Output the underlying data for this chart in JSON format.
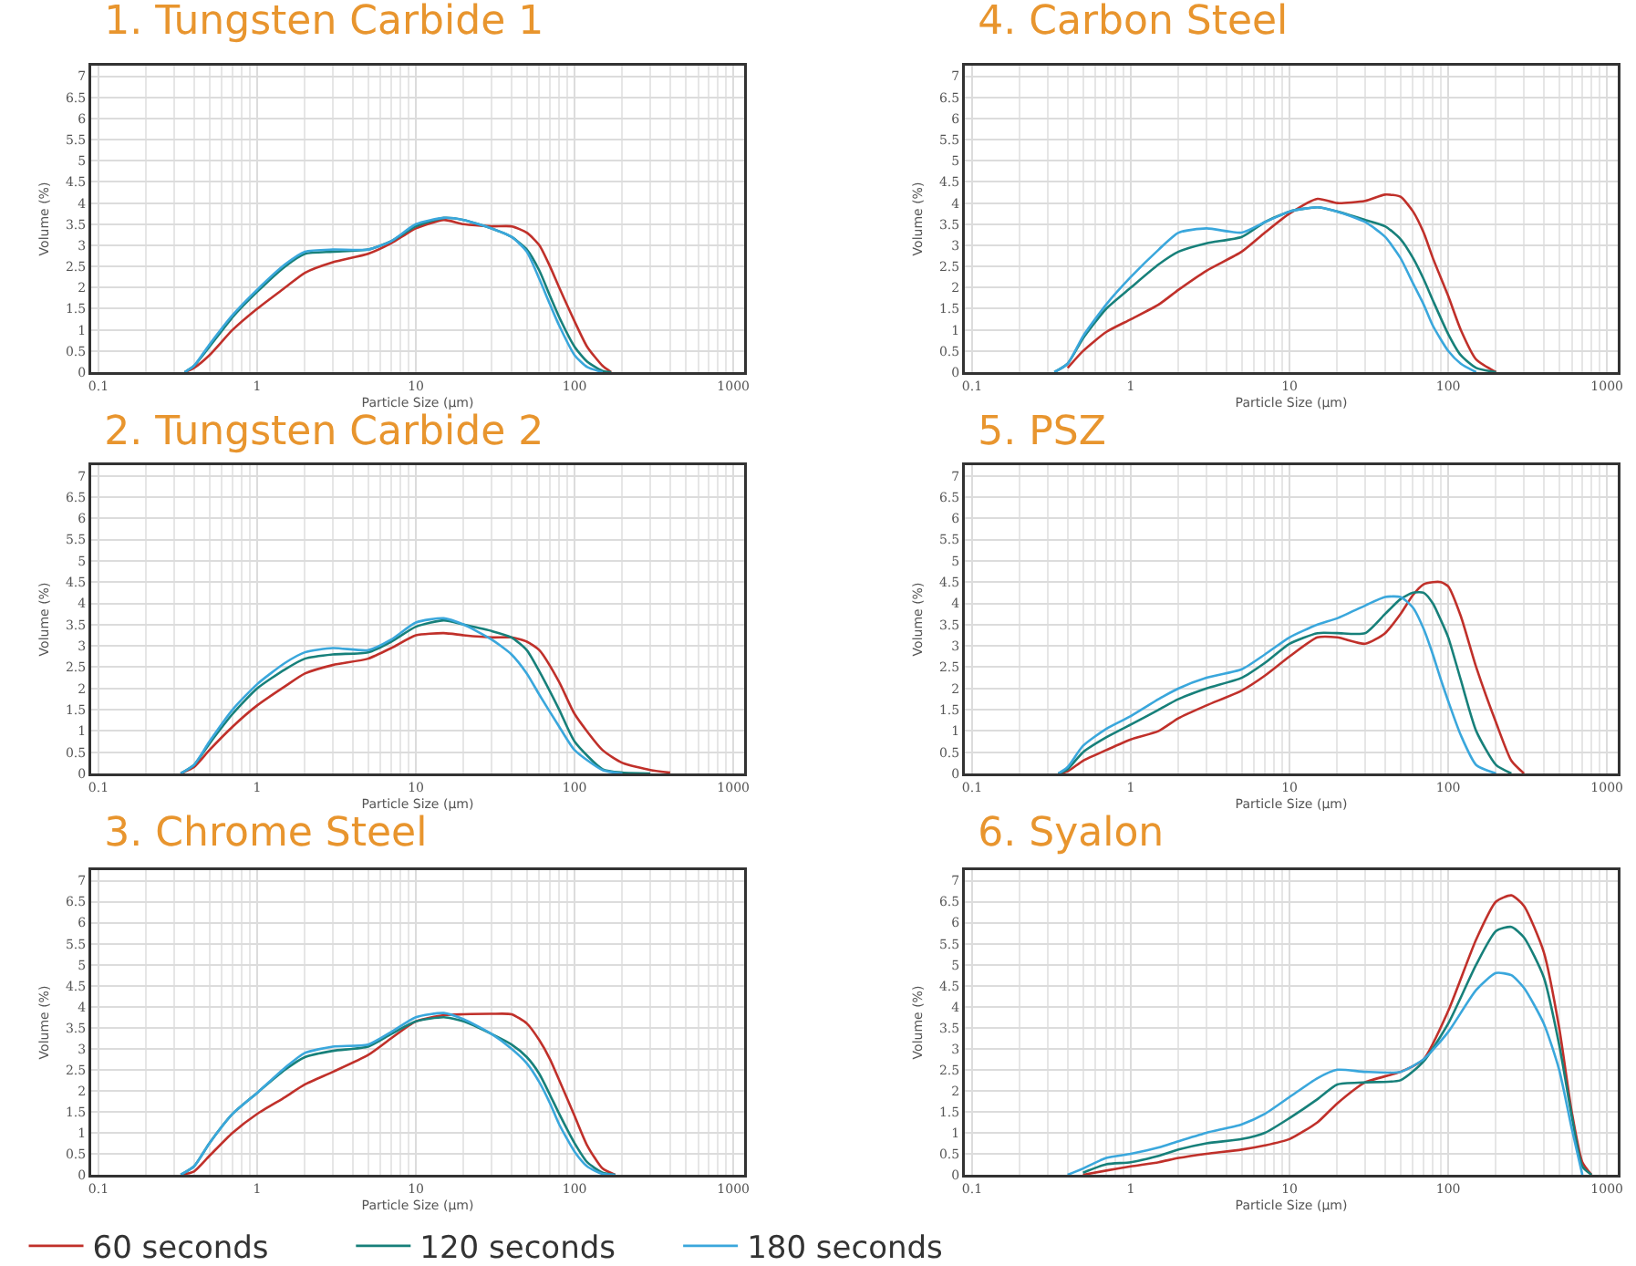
{
  "chart_data": [
    {
      "type": "line",
      "title": "1. Tungsten Carbide 1",
      "xlabel": "Particle Size (μm)",
      "ylabel": "Volume (%)",
      "log": "x",
      "grid": true,
      "legend": false,
      "xlim": [
        0.09,
        1170
      ],
      "ylim": [
        0,
        7.25
      ],
      "xticks": [
        0.1,
        1,
        10,
        100,
        1000
      ],
      "yticks": [
        0,
        0.5,
        1,
        1.5,
        2,
        2.5,
        3,
        3.5,
        4,
        4.5,
        5,
        5.5,
        6,
        6.5,
        7
      ],
      "x": [
        0.35,
        0.4,
        0.5,
        0.7,
        1,
        1.5,
        2,
        3,
        5,
        7,
        10,
        15,
        20,
        30,
        40,
        50,
        60,
        70,
        80,
        100,
        120,
        150,
        170
      ],
      "series": [
        {
          "color": "#c0302a",
          "values": [
            0,
            0.1,
            0.4,
            1.0,
            1.5,
            2.0,
            2.35,
            2.6,
            2.8,
            3.05,
            3.4,
            3.6,
            3.5,
            3.45,
            3.45,
            3.3,
            3.0,
            2.5,
            2.0,
            1.2,
            0.6,
            0.15,
            0
          ]
        },
        {
          "color": "#17807a",
          "values": [
            0,
            0.15,
            0.6,
            1.3,
            1.9,
            2.5,
            2.8,
            2.85,
            2.9,
            3.1,
            3.45,
            3.65,
            3.6,
            3.4,
            3.2,
            2.9,
            2.4,
            1.8,
            1.3,
            0.6,
            0.25,
            0.03,
            0
          ]
        },
        {
          "color": "#3aa7dc",
          "values": [
            0,
            0.15,
            0.65,
            1.35,
            1.95,
            2.55,
            2.85,
            2.9,
            2.9,
            3.1,
            3.5,
            3.65,
            3.6,
            3.4,
            3.2,
            2.85,
            2.2,
            1.6,
            1.1,
            0.4,
            0.12,
            0,
            null
          ]
        }
      ]
    },
    {
      "type": "line",
      "title": "4. Carbon Steel",
      "xlabel": "Particle Size (μm)",
      "ylabel": "Volume (%)",
      "log": "x",
      "grid": true,
      "legend": false,
      "xlim": [
        0.09,
        1170
      ],
      "ylim": [
        0,
        7.25
      ],
      "xticks": [
        0.1,
        1,
        10,
        100,
        1000
      ],
      "yticks": [
        0,
        0.5,
        1,
        1.5,
        2,
        2.5,
        3,
        3.5,
        4,
        4.5,
        5,
        5.5,
        6,
        6.5,
        7
      ],
      "x": [
        0.33,
        0.4,
        0.5,
        0.7,
        1,
        1.5,
        2,
        3,
        5,
        7,
        10,
        15,
        20,
        30,
        40,
        50,
        60,
        70,
        80,
        100,
        120,
        150,
        200
      ],
      "series": [
        {
          "color": "#c0302a",
          "values": [
            null,
            0.1,
            0.5,
            0.95,
            1.25,
            1.6,
            1.95,
            2.4,
            2.85,
            3.3,
            3.75,
            4.1,
            4.0,
            4.05,
            4.2,
            4.15,
            3.8,
            3.3,
            2.7,
            1.8,
            1.0,
            0.3,
            0
          ]
        },
        {
          "color": "#17807a",
          "values": [
            0,
            0.2,
            0.8,
            1.5,
            2.0,
            2.55,
            2.85,
            3.05,
            3.2,
            3.55,
            3.8,
            3.9,
            3.8,
            3.6,
            3.45,
            3.15,
            2.7,
            2.2,
            1.7,
            0.9,
            0.4,
            0.1,
            0
          ]
        },
        {
          "color": "#3aa7dc",
          "values": [
            0,
            0.2,
            0.85,
            1.6,
            2.25,
            2.9,
            3.3,
            3.4,
            3.3,
            3.55,
            3.8,
            3.9,
            3.8,
            3.55,
            3.2,
            2.7,
            2.1,
            1.6,
            1.1,
            0.5,
            0.2,
            0,
            null
          ]
        }
      ]
    },
    {
      "type": "line",
      "title": "2. Tungsten Carbide 2",
      "xlabel": "Particle Size (μm)",
      "ylabel": "Volume (%)",
      "log": "x",
      "grid": true,
      "legend": false,
      "xlim": [
        0.09,
        1170
      ],
      "ylim": [
        0,
        7.25
      ],
      "xticks": [
        0.1,
        1,
        10,
        100,
        1000
      ],
      "yticks": [
        0,
        0.5,
        1,
        1.5,
        2,
        2.5,
        3,
        3.5,
        4,
        4.5,
        5,
        5.5,
        6,
        6.5,
        7
      ],
      "x": [
        0.33,
        0.4,
        0.5,
        0.7,
        1,
        1.5,
        2,
        3,
        5,
        7,
        10,
        15,
        20,
        30,
        40,
        50,
        60,
        80,
        100,
        150,
        200,
        300,
        400
      ],
      "series": [
        {
          "color": "#c0302a",
          "values": [
            0,
            0.15,
            0.55,
            1.1,
            1.6,
            2.05,
            2.35,
            2.55,
            2.7,
            2.95,
            3.25,
            3.3,
            3.25,
            3.2,
            3.2,
            3.1,
            2.9,
            2.15,
            1.4,
            0.55,
            0.25,
            0.08,
            0.02
          ]
        },
        {
          "color": "#17807a",
          "values": [
            0,
            0.2,
            0.7,
            1.4,
            2.0,
            2.45,
            2.7,
            2.8,
            2.85,
            3.1,
            3.45,
            3.6,
            3.5,
            3.35,
            3.2,
            2.9,
            2.4,
            1.5,
            0.75,
            0.1,
            0.02,
            0,
            null
          ]
        },
        {
          "color": "#3aa7dc",
          "values": [
            0,
            0.2,
            0.75,
            1.5,
            2.1,
            2.6,
            2.85,
            2.95,
            2.9,
            3.15,
            3.55,
            3.65,
            3.5,
            3.15,
            2.8,
            2.35,
            1.85,
            1.1,
            0.55,
            0.08,
            0,
            null,
            null
          ]
        }
      ]
    },
    {
      "type": "line",
      "title": "5. PSZ",
      "xlabel": "Particle Size (μm)",
      "ylabel": "Volume (%)",
      "log": "x",
      "grid": true,
      "legend": false,
      "xlim": [
        0.09,
        1170
      ],
      "ylim": [
        0,
        7.25
      ],
      "xticks": [
        0.1,
        1,
        10,
        100,
        1000
      ],
      "yticks": [
        0,
        0.5,
        1,
        1.5,
        2,
        2.5,
        3,
        3.5,
        4,
        4.5,
        5,
        5.5,
        6,
        6.5,
        7
      ],
      "x": [
        0.35,
        0.4,
        0.5,
        0.7,
        1,
        1.5,
        2,
        3,
        5,
        7,
        10,
        15,
        20,
        30,
        40,
        50,
        60,
        70,
        80,
        90,
        100,
        120,
        150,
        200,
        250,
        300
      ],
      "series": [
        {
          "color": "#c0302a",
          "values": [
            0,
            0.05,
            0.3,
            0.55,
            0.8,
            1.0,
            1.3,
            1.6,
            1.95,
            2.3,
            2.75,
            3.2,
            3.2,
            3.05,
            3.3,
            3.75,
            4.2,
            4.45,
            4.5,
            4.5,
            4.4,
            3.7,
            2.5,
            1.2,
            0.3,
            0
          ]
        },
        {
          "color": "#17807a",
          "values": [
            0,
            0.1,
            0.5,
            0.85,
            1.15,
            1.5,
            1.75,
            2.0,
            2.25,
            2.6,
            3.05,
            3.3,
            3.3,
            3.3,
            3.75,
            4.1,
            4.25,
            4.25,
            4.0,
            3.6,
            3.2,
            2.2,
            1.0,
            0.2,
            0,
            null
          ]
        },
        {
          "color": "#3aa7dc",
          "values": [
            0,
            0.15,
            0.65,
            1.05,
            1.35,
            1.75,
            2.0,
            2.25,
            2.45,
            2.8,
            3.2,
            3.5,
            3.65,
            3.95,
            4.15,
            4.15,
            3.9,
            3.4,
            2.8,
            2.2,
            1.7,
            0.9,
            0.2,
            0,
            null,
            null
          ]
        }
      ]
    },
    {
      "type": "line",
      "title": "3. Chrome Steel",
      "xlabel": "Particle Size (μm)",
      "ylabel": "Volume (%)",
      "log": "x",
      "grid": true,
      "legend": "bottom",
      "xlim": [
        0.09,
        1170
      ],
      "ylim": [
        0,
        7.25
      ],
      "xticks": [
        0.1,
        1,
        10,
        100,
        1000
      ],
      "yticks": [
        0,
        0.5,
        1,
        1.5,
        2,
        2.5,
        3,
        3.5,
        4,
        4.5,
        5,
        5.5,
        6,
        6.5,
        7
      ],
      "x": [
        0.33,
        0.4,
        0.5,
        0.7,
        1,
        1.5,
        2,
        3,
        5,
        7,
        10,
        15,
        20,
        30,
        40,
        50,
        60,
        70,
        80,
        100,
        120,
        150,
        180
      ],
      "series": [
        {
          "name": "60 seconds",
          "color": "#c0302a",
          "values": [
            0,
            0.08,
            0.45,
            1.0,
            1.45,
            1.85,
            2.15,
            2.45,
            2.85,
            3.25,
            3.65,
            3.8,
            3.82,
            3.83,
            3.82,
            3.6,
            3.2,
            2.75,
            2.25,
            1.4,
            0.7,
            0.15,
            0
          ]
        },
        {
          "name": "120 seconds",
          "color": "#17807a",
          "values": [
            0,
            0.2,
            0.75,
            1.45,
            1.95,
            2.5,
            2.8,
            2.95,
            3.05,
            3.35,
            3.65,
            3.75,
            3.65,
            3.35,
            3.1,
            2.8,
            2.4,
            1.9,
            1.45,
            0.75,
            0.3,
            0.05,
            0
          ]
        },
        {
          "name": "180 seconds",
          "color": "#3aa7dc",
          "values": [
            0,
            0.2,
            0.75,
            1.45,
            1.95,
            2.55,
            2.9,
            3.05,
            3.1,
            3.4,
            3.75,
            3.85,
            3.7,
            3.35,
            3.0,
            2.65,
            2.2,
            1.7,
            1.2,
            0.55,
            0.2,
            0.02,
            0
          ]
        }
      ]
    },
    {
      "type": "line",
      "title": "6. Syalon",
      "xlabel": "Particle Size (μm)",
      "ylabel": "Volume (%)",
      "log": "x",
      "grid": true,
      "legend": false,
      "xlim": [
        0.09,
        1170
      ],
      "ylim": [
        0,
        7.25
      ],
      "xticks": [
        0.1,
        1,
        10,
        100,
        1000
      ],
      "yticks": [
        0,
        0.5,
        1,
        1.5,
        2,
        2.5,
        3,
        3.5,
        4,
        4.5,
        5,
        5.5,
        6,
        6.5,
        7
      ],
      "x": [
        0.4,
        0.5,
        0.7,
        1,
        1.5,
        2,
        3,
        5,
        7,
        10,
        15,
        20,
        30,
        50,
        70,
        100,
        150,
        200,
        250,
        300,
        400,
        500,
        600,
        700,
        800
      ],
      "series": [
        {
          "color": "#c0302a",
          "values": [
            null,
            0,
            0.1,
            0.2,
            0.3,
            0.4,
            0.5,
            0.6,
            0.7,
            0.85,
            1.25,
            1.7,
            2.2,
            2.45,
            2.75,
            3.9,
            5.6,
            6.5,
            6.65,
            6.4,
            5.3,
            3.5,
            1.5,
            0.3,
            0
          ]
        },
        {
          "color": "#17807a",
          "values": [
            null,
            0.05,
            0.25,
            0.3,
            0.45,
            0.6,
            0.75,
            0.85,
            1.0,
            1.35,
            1.8,
            2.15,
            2.2,
            2.25,
            2.7,
            3.6,
            5.0,
            5.8,
            5.9,
            5.65,
            4.7,
            3.1,
            1.4,
            0.2,
            0
          ]
        },
        {
          "color": "#3aa7dc",
          "values": [
            0,
            0.15,
            0.4,
            0.5,
            0.65,
            0.8,
            1.0,
            1.2,
            1.45,
            1.85,
            2.3,
            2.5,
            2.45,
            2.45,
            2.75,
            3.4,
            4.4,
            4.8,
            4.75,
            4.45,
            3.6,
            2.5,
            1.1,
            0,
            null
          ]
        }
      ]
    }
  ]
}
